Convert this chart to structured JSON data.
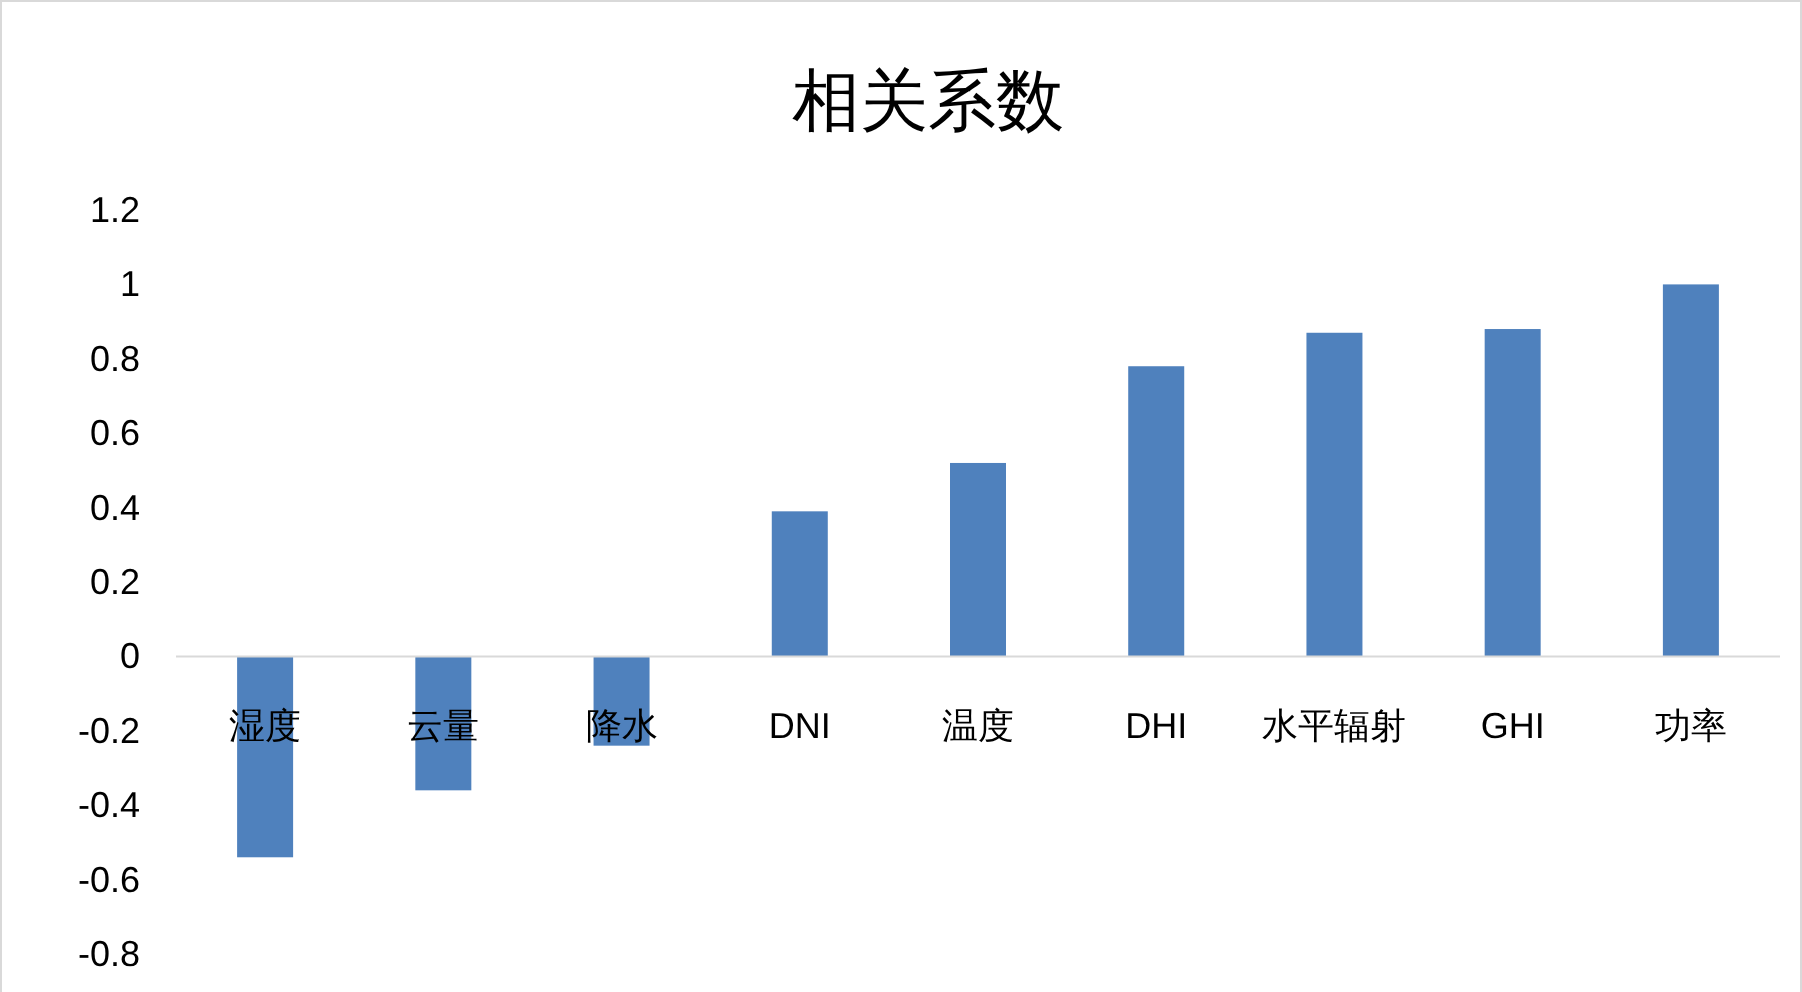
{
  "chart_data": {
    "type": "bar",
    "title": "相关系数",
    "categories": [
      "湿度",
      "云量",
      "降水",
      "DNI",
      "温度",
      "DHI",
      "水平辐射",
      "GHI",
      "功率"
    ],
    "values": [
      -0.54,
      -0.36,
      -0.24,
      0.39,
      0.52,
      0.78,
      0.87,
      0.88,
      1.0
    ],
    "color": "#4f81bd",
    "ylim": [
      -0.8,
      1.2
    ],
    "yticks": [
      -0.8,
      -0.6,
      -0.4,
      -0.2,
      0,
      0.2,
      0.4,
      0.6,
      0.8,
      1,
      1.2
    ],
    "grid": false
  }
}
